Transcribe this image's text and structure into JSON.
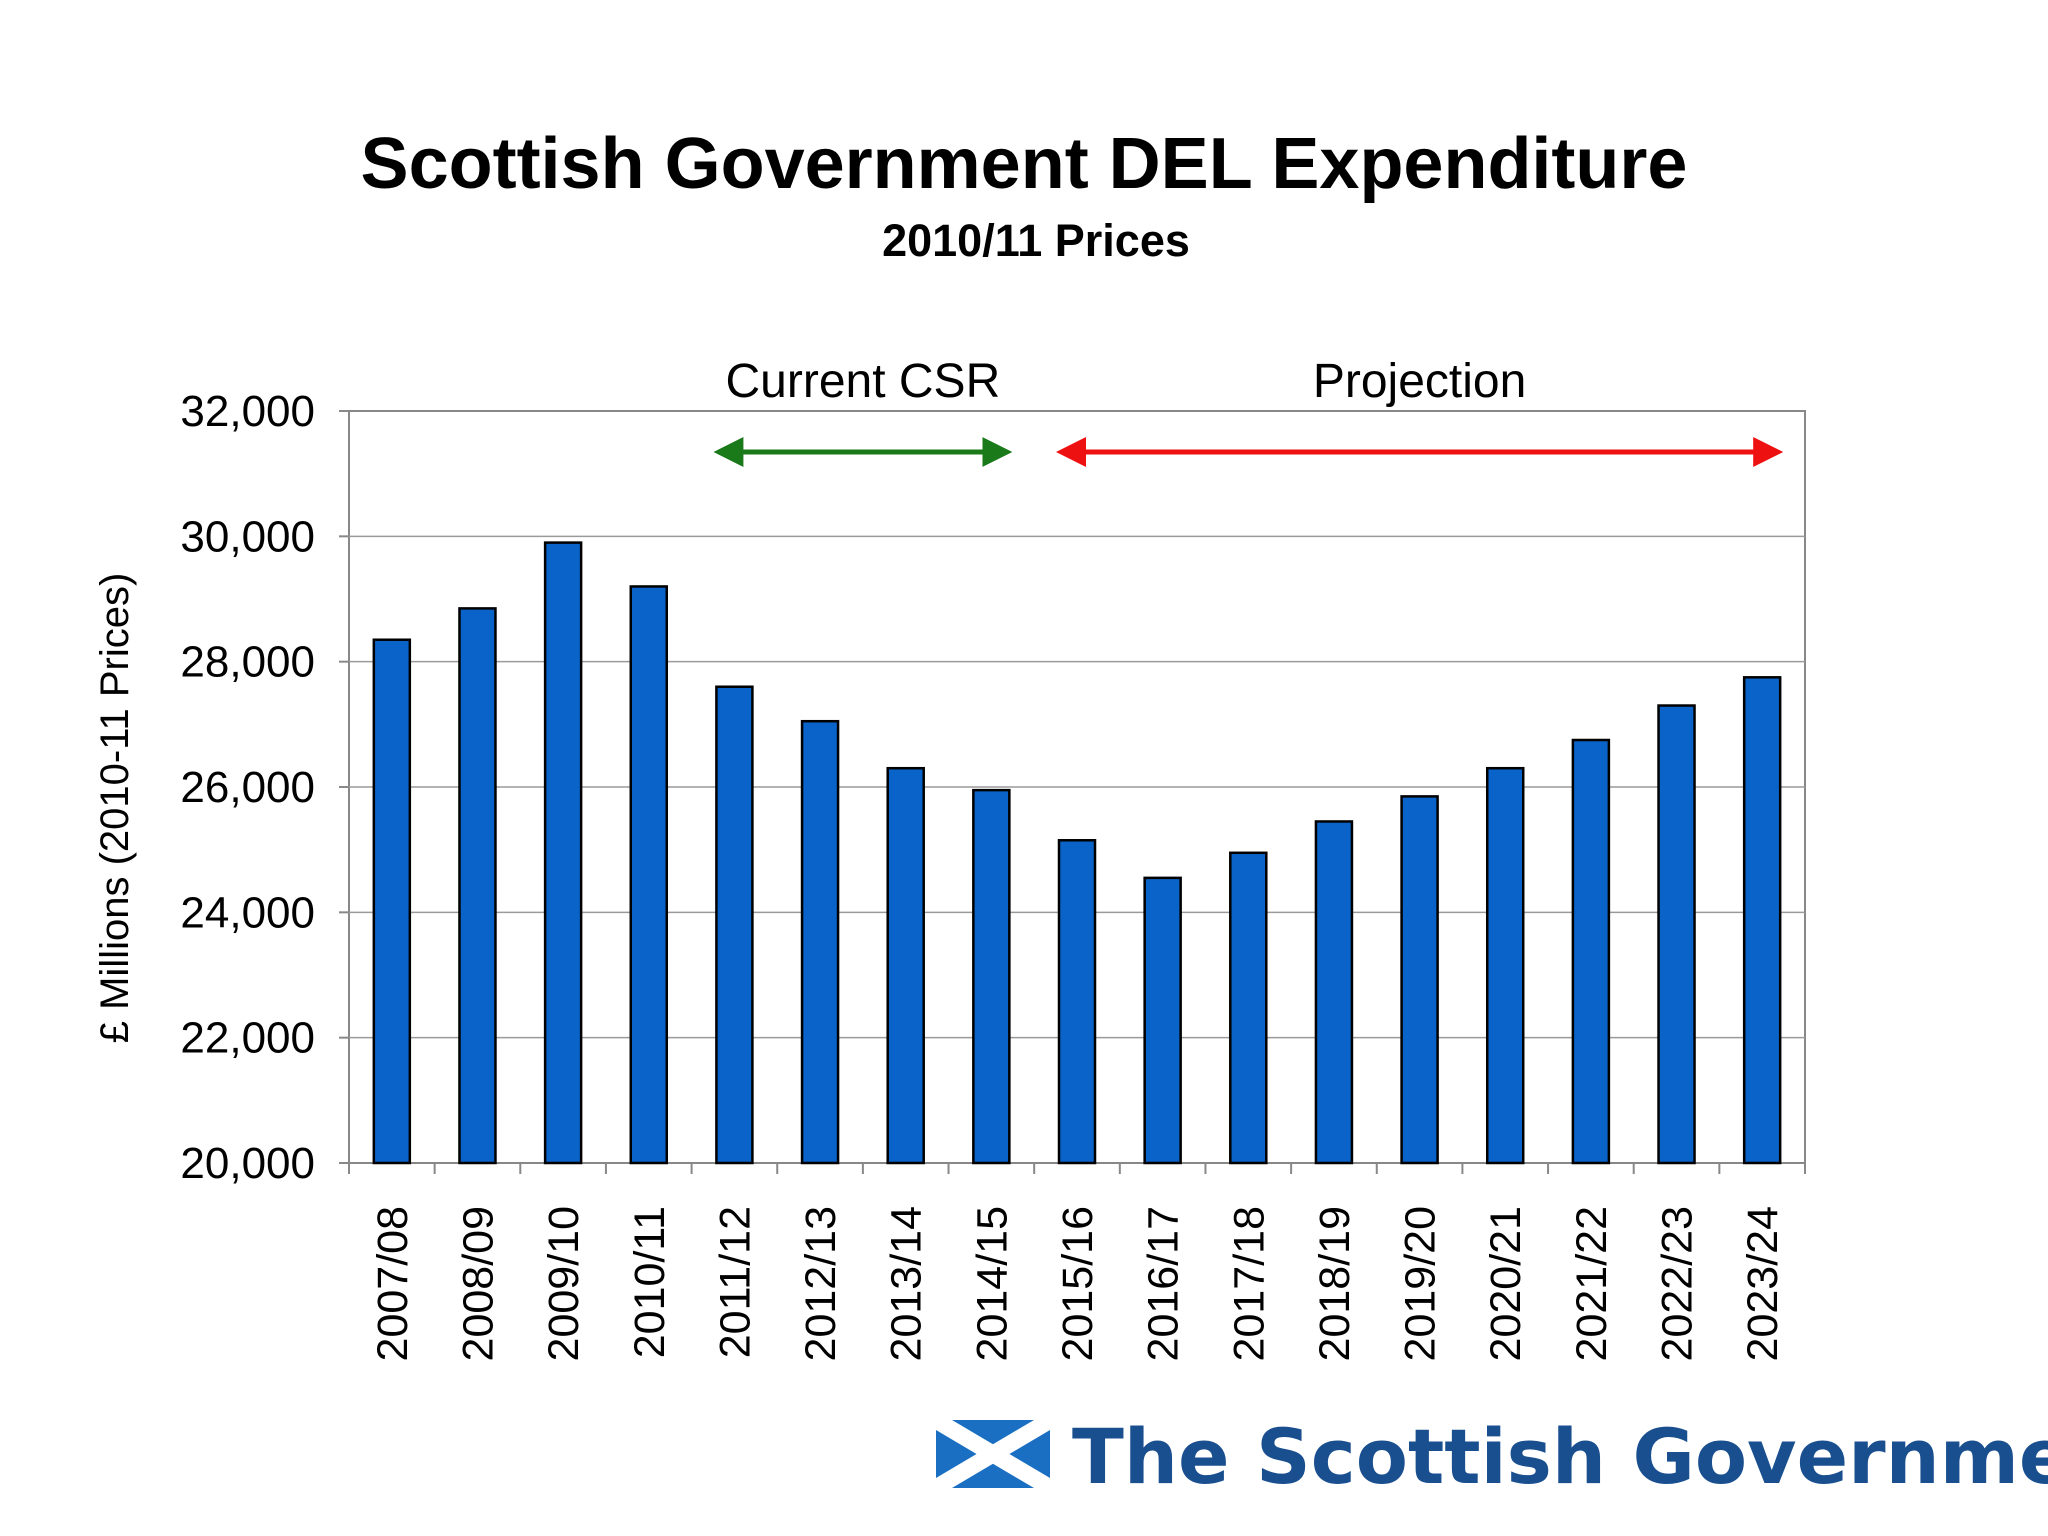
{
  "chart_data": {
    "type": "bar",
    "title": "Scottish Government DEL Expenditure",
    "subtitle": "2010/11 Prices",
    "xlabel": "",
    "ylabel": "£ Millions (2010-11 Prices)",
    "ylim": [
      20000,
      32000
    ],
    "yticks": [
      20000,
      22000,
      24000,
      26000,
      28000,
      30000,
      32000
    ],
    "ytick_labels": [
      "20,000",
      "22,000",
      "24,000",
      "26,000",
      "28,000",
      "30,000",
      "32,000"
    ],
    "grid": true,
    "categories": [
      "2007/08",
      "2008/09",
      "2009/10",
      "2010/11",
      "2011/12",
      "2012/13",
      "2013/14",
      "2014/15",
      "2015/16",
      "2016/17",
      "2017/18",
      "2018/19",
      "2019/20",
      "2020/21",
      "2021/22",
      "2022/23",
      "2023/24"
    ],
    "series": [
      {
        "name": "DEL Expenditure",
        "color": "#0a63c9",
        "values": [
          28350,
          28850,
          29900,
          29200,
          27600,
          27050,
          26300,
          25950,
          25150,
          24550,
          24950,
          25450,
          25850,
          26300,
          26750,
          27300,
          27750
        ]
      }
    ],
    "annotations": [
      {
        "label": "Current CSR",
        "color": "#1a7a1a",
        "from_category": "2011/12",
        "to_category": "2014/15"
      },
      {
        "label": "Projection",
        "color": "#ee1111",
        "from_category": "2015/16",
        "to_category": "2023/24"
      }
    ]
  },
  "logo": {
    "text": "The Scottish Government",
    "text_color": "#1a4f8f",
    "flag_color": "#1a6fc2"
  }
}
